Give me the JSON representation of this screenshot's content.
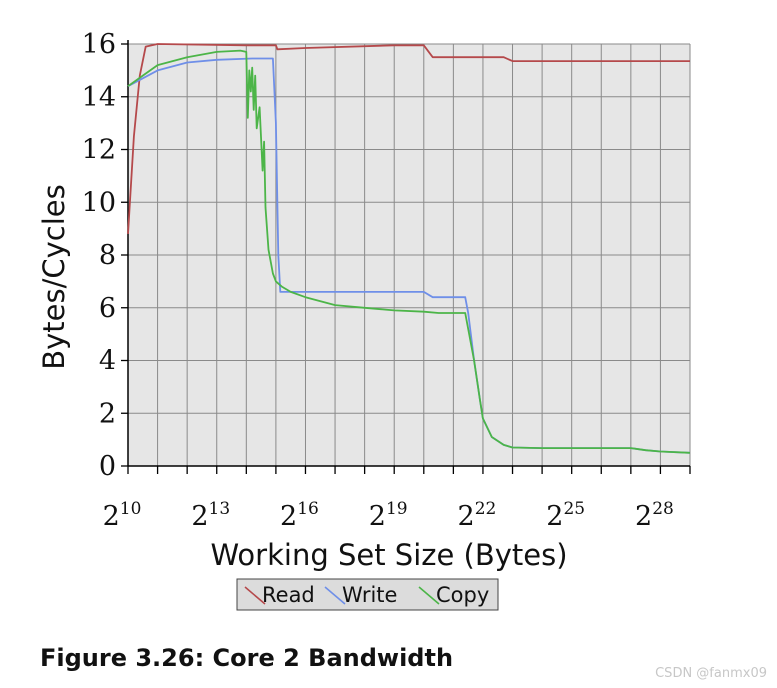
{
  "caption": "Figure 3.26: Core 2 Bandwidth",
  "watermark": "CSDN @fanmx09",
  "chart_data": {
    "type": "line",
    "xlabel": "Working Set Size (Bytes)",
    "ylabel": "Bytes/Cycles",
    "x_scale": "log2",
    "xlim": [
      10,
      29
    ],
    "ylim": [
      0,
      16
    ],
    "x_ticks": [
      10,
      13,
      16,
      19,
      22,
      25,
      28
    ],
    "y_ticks": [
      0,
      2,
      4,
      6,
      8,
      10,
      12,
      14,
      16
    ],
    "grid": true,
    "background": "#e6e6e6",
    "legend_position": "bottom",
    "series": [
      {
        "name": "Read",
        "color": "#b5494b",
        "points": [
          [
            10,
            8.8
          ],
          [
            10.2,
            12.5
          ],
          [
            10.4,
            14.8
          ],
          [
            10.6,
            15.9
          ],
          [
            11,
            16
          ],
          [
            14,
            15.95
          ],
          [
            15,
            15.95
          ],
          [
            15.05,
            15.8
          ],
          [
            16,
            15.85
          ],
          [
            19,
            15.95
          ],
          [
            20,
            15.95
          ],
          [
            20.3,
            15.5
          ],
          [
            22,
            15.5
          ],
          [
            22.7,
            15.5
          ],
          [
            23,
            15.35
          ],
          [
            26,
            15.35
          ],
          [
            29,
            15.35
          ]
        ]
      },
      {
        "name": "Write",
        "color": "#6f8fe8",
        "points": [
          [
            10,
            14.4
          ],
          [
            11,
            15
          ],
          [
            12,
            15.3
          ],
          [
            13,
            15.4
          ],
          [
            14.2,
            15.45
          ],
          [
            14.9,
            15.45
          ],
          [
            15,
            13
          ],
          [
            15.08,
            8
          ],
          [
            15.15,
            6.6
          ],
          [
            16,
            6.6
          ],
          [
            18,
            6.6
          ],
          [
            20,
            6.6
          ],
          [
            20.3,
            6.4
          ],
          [
            21,
            6.4
          ],
          [
            21.4,
            6.4
          ],
          [
            21.5,
            5.8
          ],
          [
            21.7,
            4
          ],
          [
            21.9,
            2.5
          ],
          [
            22,
            1.8
          ],
          [
            22.3,
            1.1
          ],
          [
            22.7,
            0.8
          ],
          [
            23,
            0.7
          ],
          [
            24,
            0.68
          ],
          [
            26,
            0.68
          ],
          [
            27,
            0.68
          ],
          [
            27.5,
            0.6
          ],
          [
            28,
            0.55
          ],
          [
            29,
            0.5
          ]
        ]
      },
      {
        "name": "Copy",
        "color": "#4cb548",
        "points": [
          [
            10,
            14.4
          ],
          [
            10.5,
            14.8
          ],
          [
            11,
            15.2
          ],
          [
            12,
            15.5
          ],
          [
            13,
            15.7
          ],
          [
            13.8,
            15.75
          ],
          [
            14,
            15.7
          ],
          [
            14.05,
            13.2
          ],
          [
            14.1,
            15
          ],
          [
            14.15,
            14.2
          ],
          [
            14.2,
            15.1
          ],
          [
            14.25,
            13.5
          ],
          [
            14.3,
            14.8
          ],
          [
            14.35,
            12.8
          ],
          [
            14.45,
            13.6
          ],
          [
            14.55,
            11.2
          ],
          [
            14.6,
            12.3
          ],
          [
            14.65,
            9.8
          ],
          [
            14.75,
            8.2
          ],
          [
            14.9,
            7.3
          ],
          [
            15,
            7.0
          ],
          [
            15.2,
            6.8
          ],
          [
            15.5,
            6.6
          ],
          [
            16,
            6.4
          ],
          [
            17,
            6.1
          ],
          [
            18,
            6.0
          ],
          [
            19,
            5.9
          ],
          [
            20,
            5.85
          ],
          [
            20.5,
            5.8
          ],
          [
            21,
            5.8
          ],
          [
            21.4,
            5.8
          ],
          [
            21.5,
            5.2
          ],
          [
            21.7,
            4.0
          ],
          [
            21.9,
            2.5
          ],
          [
            22,
            1.8
          ],
          [
            22.3,
            1.1
          ],
          [
            22.7,
            0.8
          ],
          [
            23,
            0.7
          ],
          [
            24,
            0.68
          ],
          [
            26,
            0.68
          ],
          [
            27,
            0.68
          ],
          [
            27.5,
            0.6
          ],
          [
            28,
            0.55
          ],
          [
            29,
            0.5
          ]
        ]
      }
    ]
  }
}
